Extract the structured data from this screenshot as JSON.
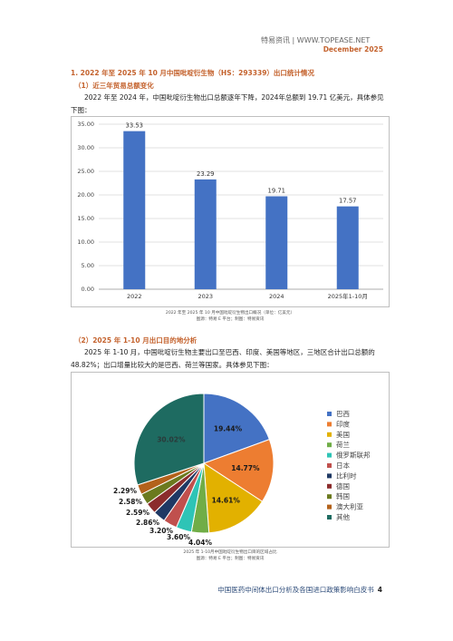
{
  "header": {
    "brand": "特易资讯  | WWW.TOPEASE.NET",
    "date": "December 2025"
  },
  "section": {
    "title": "1. 2022 年至 2025 年 10 月中国吡啶衍生物（HS：293339）出口统计情况",
    "sub1": "（1）近三年贸易总额变化",
    "para1": "2022 年至 2024 年，中国吡啶衍生物出口总额逐年下降，2024年总额到 19.71 亿美元，具体参见下图：",
    "caption1_line1": "2022 年至 2025 年 10 月中国吡啶衍生物出口概况（单位：亿美元）",
    "caption1_line2": "图源：特易 E 平台；制图：特易资讯",
    "sub2": "（2）2025 年 1-10 月出口目的地分析",
    "para2": "2025 年 1-10 月，中国吡啶衍生物主要出口至巴西、印度、美国等地区，三地区合计出口总额的 48.82%；出口增量比较大的是巴西、荷兰等国家。具体参见下图：",
    "caption2_line1": "2025 年 1-10月中国吡啶衍生物出口目的区域占比",
    "caption2_line2": "图源：特易 E 平台；制图：特易资讯"
  },
  "footer": {
    "text": "中国医药中间体出口分析及各国进口政策影响白皮书",
    "page": "4"
  },
  "chart_data": [
    {
      "type": "bar",
      "categories": [
        "2022",
        "2023",
        "2024",
        "2025年1-10月"
      ],
      "values": [
        33.53,
        23.29,
        19.71,
        17.57
      ],
      "value_labels": [
        "33.53",
        "23.29",
        "19.71",
        "17.57"
      ],
      "ylim": [
        0,
        35
      ],
      "yticks": [
        "0.00",
        "5.00",
        "10.00",
        "15.00",
        "20.00",
        "25.00",
        "30.00",
        "35.00"
      ],
      "grid": true,
      "bar_color": "#4472c4"
    },
    {
      "type": "pie",
      "labels": [
        "巴西",
        "印度",
        "美国",
        "荷兰",
        "俄罗斯联邦",
        "日本",
        "比利时",
        "德国",
        "韩国",
        "澳大利亚",
        "其他"
      ],
      "values": [
        19.44,
        14.77,
        14.61,
        4.04,
        3.6,
        3.2,
        2.86,
        2.59,
        2.58,
        2.29,
        30.02
      ],
      "value_labels": [
        "19.44%",
        "14.77%",
        "14.61%",
        "4.04%",
        "3.60%",
        "3.20%",
        "2.86%",
        "2.59%",
        "2.58%",
        "2.29%",
        "30.02%"
      ],
      "colors": [
        "#4472c4",
        "#ed7d31",
        "#e2b100",
        "#70ad47",
        "#2ec4b6",
        "#c0504d",
        "#1f3864",
        "#8b2c2c",
        "#6b7a1e",
        "#b3621b",
        "#1e6b61"
      ],
      "legend_position": "right"
    }
  ]
}
